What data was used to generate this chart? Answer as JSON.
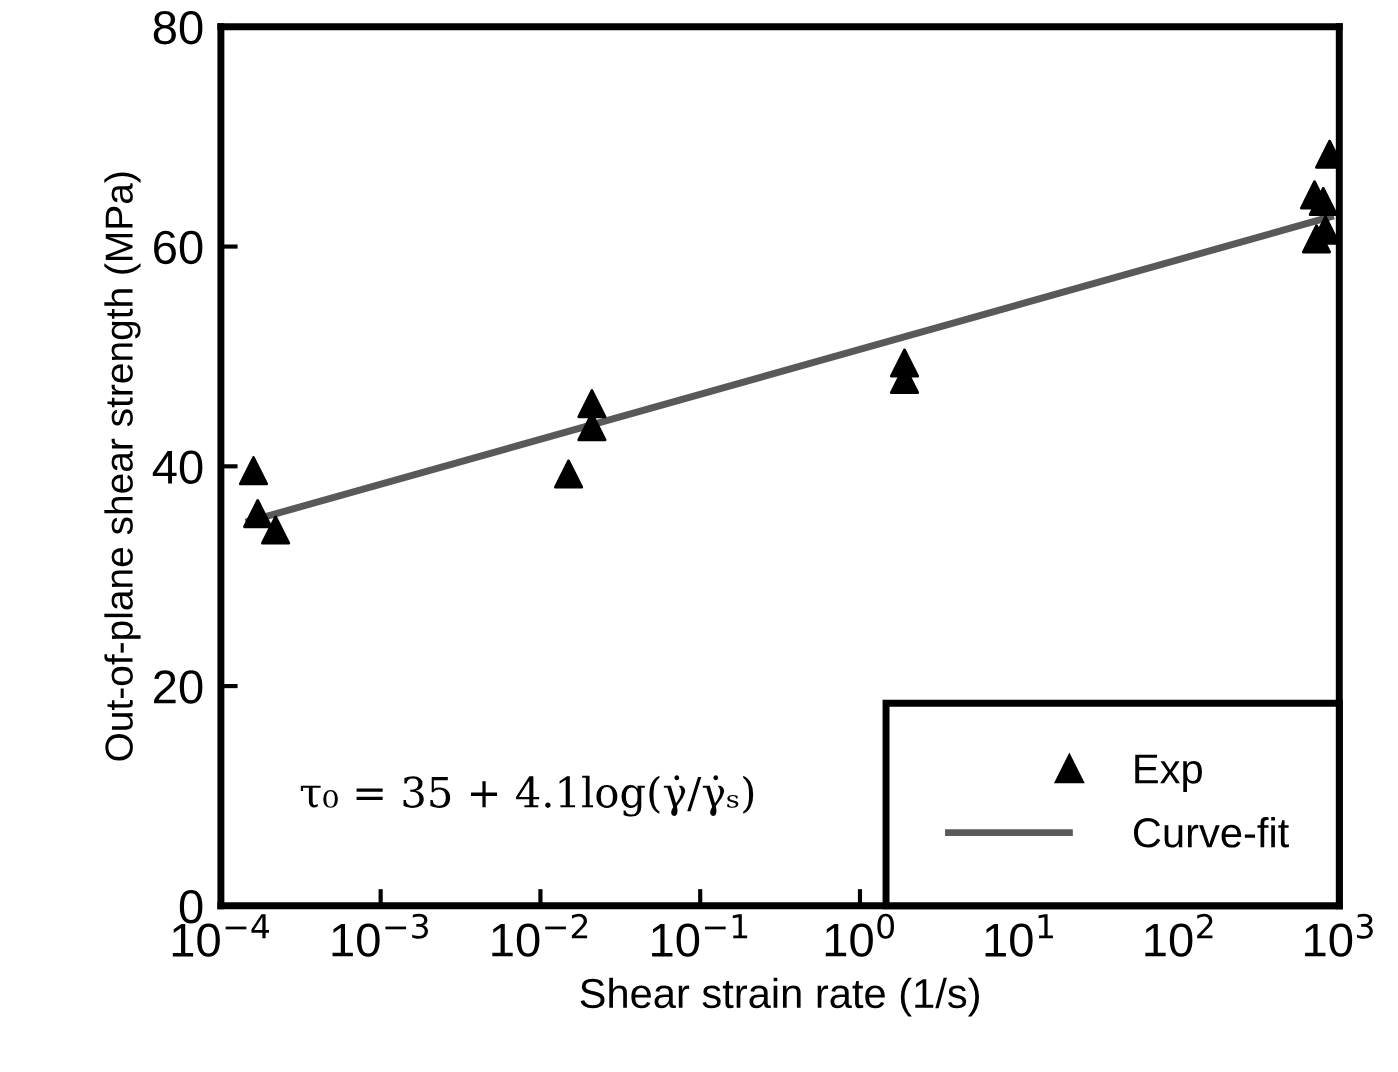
{
  "chart_data": {
    "type": "scatter",
    "xlabel": "Shear strain rate (1/s)",
    "ylabel": "Out-of-plane shear strength (MPa)",
    "log": "x",
    "xlim": [
      0.0001,
      1000
    ],
    "ylim": [
      0,
      80
    ],
    "xticks": [
      {
        "value": 0.0001,
        "label": "10$^{−4}$"
      },
      {
        "value": 0.001,
        "label": "10$^{−3}$"
      },
      {
        "value": 0.01,
        "label": "10$^{−2}$"
      },
      {
        "value": 0.1,
        "label": "10$^{−1}$"
      },
      {
        "value": 1,
        "label": "10$^{0}$"
      },
      {
        "value": 10,
        "label": "10$^{1}$"
      },
      {
        "value": 100,
        "label": "10$^{2}$"
      },
      {
        "value": 1000,
        "label": "10$^{3}$"
      }
    ],
    "yticks": [
      0,
      20,
      40,
      60,
      80
    ],
    "grid": false,
    "legend": "bottom right",
    "series": [
      {
        "name": "Exp",
        "color": "#000000",
        "marker": "triangle",
        "x": [
          0.00016,
          0.00017,
          0.00022,
          0.015,
          0.021,
          0.021,
          1.9,
          1.9,
          700,
          794,
          720,
          820,
          870
        ],
        "values": [
          39.6,
          35.7,
          34.2,
          39.3,
          43.6,
          45.7,
          49.4,
          47.9,
          64.7,
          64.1,
          60.7,
          61.5,
          68.4
        ]
      },
      {
        "name": "Curve-fit",
        "type": "line",
        "color": "#595959",
        "marker": "none",
        "line_style": "solid",
        "x": [
          0.00015,
          880
        ],
        "values": [
          35,
          62.7
        ]
      }
    ],
    "annotations": [
      "τ₀ = 35 + 4.1log(γ̇/γ̇ₛ)"
    ]
  }
}
